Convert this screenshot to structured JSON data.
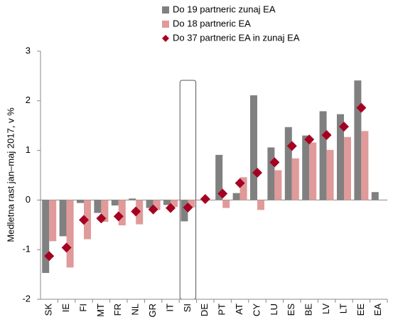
{
  "chart_data": {
    "type": "bar",
    "ylabel": "Medletna rast jan–maj 2017, v %",
    "categories": [
      "SK",
      "IE",
      "FI",
      "MT",
      "FR",
      "NL",
      "GR",
      "IT",
      "SI",
      "DE",
      "PT",
      "AT",
      "CY",
      "LU",
      "ES",
      "BE",
      "LV",
      "LT",
      "EE",
      "EA"
    ],
    "series": [
      {
        "name": "Do 19 partneric zunaj EA",
        "color": "#808080",
        "mark": "bar",
        "values": [
          -1.47,
          -0.73,
          -0.06,
          -0.26,
          -0.11,
          0.03,
          -0.16,
          -0.1,
          -0.43,
          0,
          0.91,
          0.14,
          2.11,
          1.06,
          1.47,
          1.3,
          1.79,
          1.73,
          2.41,
          0.16
        ]
      },
      {
        "name": "Do 18 partneric EA",
        "color": "#e09a9a",
        "mark": "bar",
        "values": [
          -0.83,
          -1.36,
          -0.79,
          -0.44,
          -0.51,
          -0.49,
          -0.2,
          -0.14,
          -0.15,
          0,
          -0.16,
          0.46,
          -0.2,
          0.6,
          0.84,
          1.16,
          1.01,
          1.27,
          1.39,
          null
        ]
      },
      {
        "name": "Do 37 partneric EA in zunaj EA",
        "color": "#a50021",
        "mark": "diamond",
        "values": [
          -1.13,
          -0.96,
          -0.4,
          -0.37,
          -0.33,
          -0.23,
          -0.19,
          -0.16,
          -0.15,
          0.02,
          0.13,
          0.34,
          0.55,
          0.76,
          1.09,
          1.22,
          1.31,
          1.48,
          1.86,
          null
        ]
      }
    ],
    "ylim": [
      -2,
      3
    ],
    "yticks": [
      -2,
      -1,
      0,
      1,
      2,
      3
    ],
    "grid": false
  }
}
